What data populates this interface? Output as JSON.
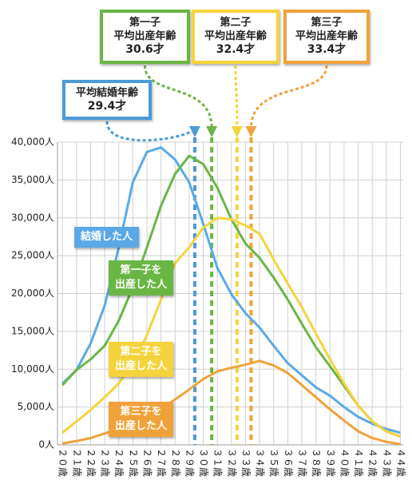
{
  "chart_data": {
    "type": "line",
    "x": [
      20,
      21,
      22,
      23,
      24,
      25,
      26,
      27,
      28,
      29,
      30,
      31,
      32,
      33,
      34,
      35,
      36,
      37,
      38,
      39,
      40,
      41,
      42,
      43,
      44
    ],
    "xlim": [
      19.65,
      44.2
    ],
    "xticks": [
      {
        "value": 20,
        "label": "２０歳"
      },
      {
        "value": 21,
        "label": "２１歳"
      },
      {
        "value": 22,
        "label": "２２歳"
      },
      {
        "value": 23,
        "label": "２３歳"
      },
      {
        "value": 24,
        "label": "２４歳"
      },
      {
        "value": 25,
        "label": "２５歳"
      },
      {
        "value": 26,
        "label": "２６歳"
      },
      {
        "value": 27,
        "label": "２７歳"
      },
      {
        "value": 28,
        "label": "２８歳"
      },
      {
        "value": 29,
        "label": "２９歳"
      },
      {
        "value": 30,
        "label": "３０歳"
      },
      {
        "value": 31,
        "label": "３１歳"
      },
      {
        "value": 32,
        "label": "３２歳"
      },
      {
        "value": 33,
        "label": "３３歳"
      },
      {
        "value": 34,
        "label": "３４歳"
      },
      {
        "value": 35,
        "label": "３５歳"
      },
      {
        "value": 36,
        "label": "３６歳"
      },
      {
        "value": 37,
        "label": "３７歳"
      },
      {
        "value": 38,
        "label": "３８歳"
      },
      {
        "value": 39,
        "label": "３９歳"
      },
      {
        "value": 40,
        "label": "４０歳"
      },
      {
        "value": 41,
        "label": "４１歳"
      },
      {
        "value": 42,
        "label": "４２歳"
      },
      {
        "value": 43,
        "label": "４３歳"
      },
      {
        "value": 44,
        "label": "４４歳"
      }
    ],
    "ylim": [
      0,
      40000
    ],
    "yticks": [
      {
        "value": 0,
        "label": "0人"
      },
      {
        "value": 5000,
        "label": "5,000人"
      },
      {
        "value": 10000,
        "label": "10,000人"
      },
      {
        "value": 15000,
        "label": "15,000人"
      },
      {
        "value": 20000,
        "label": "20,000人"
      },
      {
        "value": 25000,
        "label": "25,000人"
      },
      {
        "value": 30000,
        "label": "30,000人"
      },
      {
        "value": 35000,
        "label": "35,000人"
      },
      {
        "value": 40000,
        "label": "40,000人"
      }
    ],
    "grid": true,
    "series": [
      {
        "name": "結婚した人",
        "color": "#5aa9e6",
        "values": [
          8100,
          9900,
          13400,
          18400,
          26100,
          34700,
          38700,
          39300,
          37700,
          34700,
          29200,
          23400,
          19900,
          17400,
          15500,
          13100,
          10800,
          9200,
          7600,
          6500,
          5000,
          3700,
          2800,
          2100,
          1600
        ]
      },
      {
        "name": "第一子を\n出産した人",
        "color": "#6ab645",
        "values": [
          7900,
          9900,
          11300,
          13100,
          16400,
          20800,
          26100,
          31600,
          35800,
          38200,
          37100,
          34000,
          29800,
          26600,
          24700,
          22100,
          19200,
          16000,
          12900,
          10400,
          7800,
          5200,
          3100,
          1800,
          1100
        ]
      },
      {
        "name": "第二子を\n出産した人",
        "color": "#f5d33c",
        "values": [
          1600,
          3100,
          4600,
          6300,
          8100,
          10800,
          14500,
          19200,
          24000,
          26100,
          28700,
          30000,
          29800,
          29000,
          27900,
          24500,
          21300,
          18200,
          14700,
          11300,
          8100,
          5200,
          3100,
          1800,
          1100
        ]
      },
      {
        "name": "第三子を\n出産した人",
        "color": "#f0a23a",
        "values": [
          200,
          500,
          900,
          1500,
          2100,
          2800,
          3700,
          4700,
          6000,
          7300,
          8700,
          9700,
          10200,
          10600,
          11100,
          10500,
          9500,
          7900,
          6300,
          4700,
          3200,
          1800,
          900,
          400,
          100
        ]
      }
    ],
    "markers": [
      {
        "title": "平均結婚年齢",
        "value": 29.4,
        "label": "29.4才",
        "color": "#4a9bd6"
      },
      {
        "title": "第一子\n平均出産年齢",
        "value": 30.6,
        "label": "30.6才",
        "color": "#6ab645"
      },
      {
        "title": "第二子\n平均出産年齢",
        "value": 32.4,
        "label": "32.4才",
        "color": "#f5d33c"
      },
      {
        "title": "第三子\n平均出産年齢",
        "value": 33.4,
        "label": "33.4才",
        "color": "#f0a23a"
      }
    ]
  }
}
